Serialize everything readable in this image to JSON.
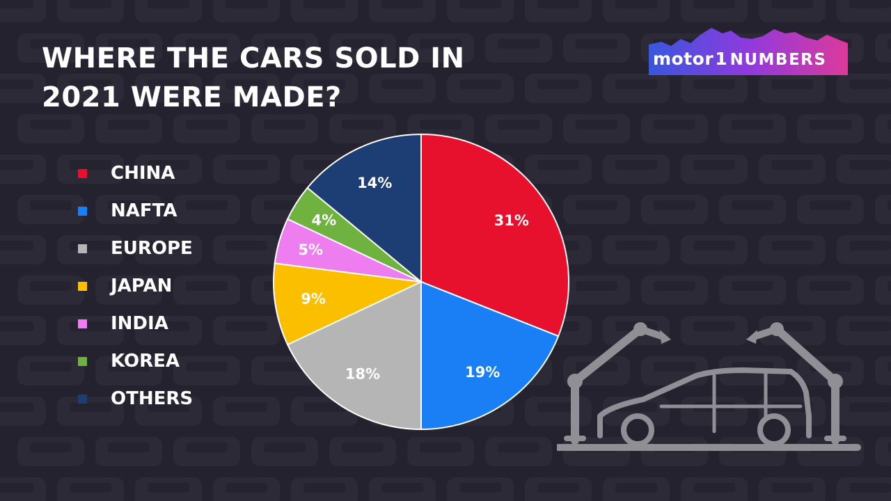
{
  "title_lines": [
    "WHERE THE CARS SOLD IN",
    "2021 WERE MADE?"
  ],
  "logo": {
    "brand": "motor",
    "numeral": "1",
    "suffix": "NUMBERS"
  },
  "colors": {
    "background": "#24222e",
    "china": "#e8112d",
    "nafta": "#1a7ff5",
    "europe": "#b5b5b5",
    "japan": "#fcbf00",
    "india": "#ee7ef0",
    "korea": "#6fb23f",
    "others": "#1c3e74",
    "illustration": "#8f8f95"
  },
  "illustration": {
    "icon": "car-assembly-robots-icon"
  },
  "chart_data": {
    "type": "pie",
    "title": "WHERE THE CARS SOLD IN 2021 WERE MADE?",
    "legend_position": "left",
    "slices": [
      {
        "label": "CHINA",
        "value": 31,
        "display": "31%",
        "color": "#e8112d"
      },
      {
        "label": "NAFTA",
        "value": 19,
        "display": "19%",
        "color": "#1a7ff5"
      },
      {
        "label": "EUROPE",
        "value": 18,
        "display": "18%",
        "color": "#b5b5b5"
      },
      {
        "label": "JAPAN",
        "value": 9,
        "display": "9%",
        "color": "#fcbf00"
      },
      {
        "label": "INDIA",
        "value": 5,
        "display": "5%",
        "color": "#ee7ef0"
      },
      {
        "label": "KOREA",
        "value": 4,
        "display": "4%",
        "color": "#6fb23f"
      },
      {
        "label": "OTHERS",
        "value": 14,
        "display": "14%",
        "color": "#1c3e74"
      }
    ]
  }
}
